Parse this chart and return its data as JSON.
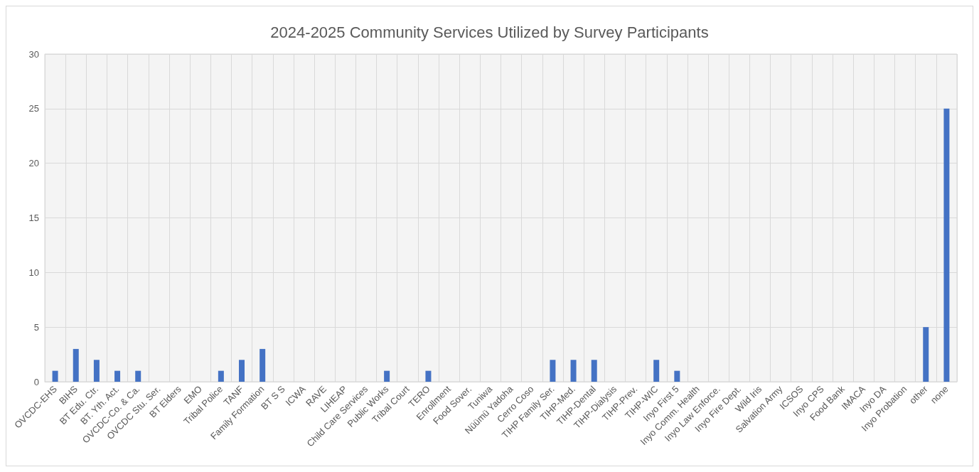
{
  "chart_data": {
    "type": "bar",
    "title": "2024-2025 Community Services Utilized by Survey Participants",
    "categories": [
      "OVCDC-EHS",
      "BIHS",
      "BT Edu. Ctr.",
      "BT. Yth. Act.",
      "OVCDC-Co. & Ca.",
      "OVCDC Stu. Ser.",
      "BT Elders",
      "EMO",
      "Tribal Police",
      "TANF",
      "Family Formation",
      "BT S S",
      "ICWA",
      "RAVE",
      "LIHEAP",
      "Child Care Services",
      "Public Works",
      "Tribal Court",
      "TERO",
      "Enrollment",
      "Food Sover.",
      "Tuniwa",
      "Nüümü Yadoha",
      "Cerro Coso",
      "TIHP Family Ser.",
      "TIHP-Med.",
      "TIHP-Dental",
      "TIHP-Dialysis",
      "TIHP-Prev.",
      "TIHP-WIC",
      "Inyo First 5",
      "Inyo Comm. Health",
      "Inyo Law Enforce.",
      "Inyo Fire Dept.",
      "Wild Iris",
      "Salvation Army",
      "ICSOS",
      "Inyo CPS",
      "Food Bank",
      "IMACA",
      "Inyo DA",
      "Inyo Probation",
      "other",
      "none"
    ],
    "values": [
      1,
      3,
      2,
      1,
      1,
      0,
      0,
      0,
      1,
      2,
      3,
      0,
      0,
      0,
      0,
      0,
      1,
      0,
      1,
      0,
      0,
      0,
      0,
      0,
      2,
      2,
      2,
      0,
      0,
      2,
      1,
      0,
      0,
      0,
      0,
      0,
      0,
      0,
      0,
      0,
      0,
      0,
      5,
      25
    ],
    "color": "#4472c4",
    "ylim": [
      0,
      30
    ],
    "yticks": [
      0,
      5,
      10,
      15,
      20,
      25,
      30
    ],
    "grid": true
  }
}
